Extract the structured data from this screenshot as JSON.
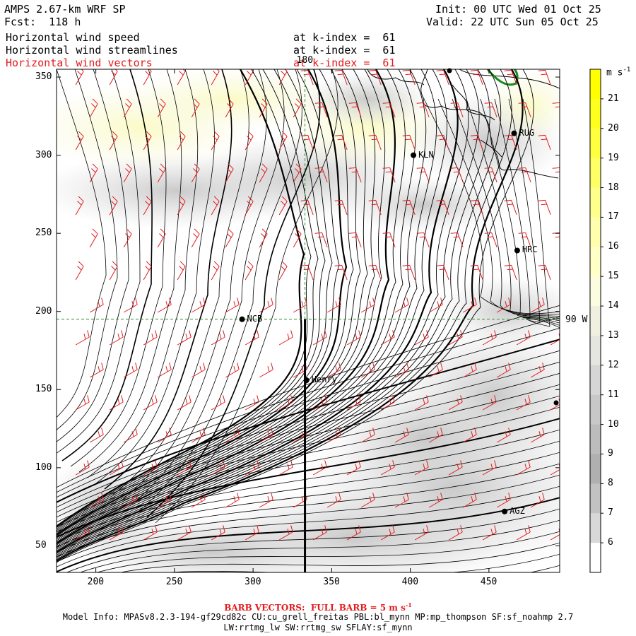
{
  "header": {
    "model": "AMPS 2.67-km WRF SP",
    "forecast": "Fcst:  118 h",
    "init": "Init: 00 UTC Wed 01 Oct 25",
    "valid": "Valid: 22 UTC Sun 05 Oct 25",
    "fields": [
      {
        "name": "Horizontal wind speed",
        "level": "at k-index =  61",
        "color": "black"
      },
      {
        "name": "Horizontal wind streamlines",
        "level": "at k-index =  61",
        "color": "black"
      },
      {
        "name": "Horizontal wind vectors",
        "level": "at k-index =  61",
        "color": "red"
      }
    ]
  },
  "axes": {
    "x_ticks": [
      "200",
      "250",
      "300",
      "350",
      "400",
      "450"
    ],
    "x_values": [
      200,
      250,
      300,
      350,
      400,
      450
    ],
    "x_range": [
      175,
      495
    ],
    "y_ticks": [
      "350",
      "300",
      "250",
      "200",
      "150",
      "100",
      "50"
    ],
    "y_values": [
      350,
      300,
      250,
      200,
      150,
      100,
      50
    ],
    "y_range": [
      33,
      355
    ]
  },
  "reference_lines": {
    "meridian_180": "180",
    "meridian_90w": "90 W",
    "meridian_180_x": 333,
    "meridian_90w_y": 195
  },
  "stations": [
    {
      "id": "NCB",
      "x": 293,
      "y": 195
    },
    {
      "id": "Henry",
      "x": 334,
      "y": 156
    },
    {
      "id": "KLN",
      "x": 402,
      "y": 300
    },
    {
      "id": "RUG",
      "x": 466,
      "y": 314
    },
    {
      "id": "HRC",
      "x": 468,
      "y": 239
    },
    {
      "id": "AGZ",
      "x": 460,
      "y": 72
    }
  ],
  "colorbar": {
    "unit": "m s-1",
    "labels": [
      "21",
      "20",
      "19",
      "18",
      "17",
      "16",
      "15",
      "14",
      "13",
      "12",
      "11",
      "10",
      "9",
      "8",
      "7",
      "6"
    ],
    "colors": [
      "#ffff00",
      "#ffff1e",
      "#ffff3e",
      "#ffff66",
      "#ffff8c",
      "#ffffae",
      "#ffffc8",
      "#fcfce0",
      "#f0f0e0",
      "#e6e6e0",
      "#d6d6d6",
      "#c8c8c8",
      "#bcbcbc",
      "#b0b0b0",
      "#c2c2c2",
      "#d8d8d8",
      "#ffffff"
    ]
  },
  "footer": {
    "barb": "BARB VECTORS:  FULL BARB = 5 m s",
    "barb_sup": "-1",
    "model_info": "Model Info: MPASv8.2.3-194-gf29cd82c CU:cu_grell_freitas PBL:bl_mynn MP:mp_thompson SF:sf_noahmp 2.7",
    "phys": "LW:rrtmg_lw SW:rrtmg_sw SFLAY:sf_mynn"
  }
}
